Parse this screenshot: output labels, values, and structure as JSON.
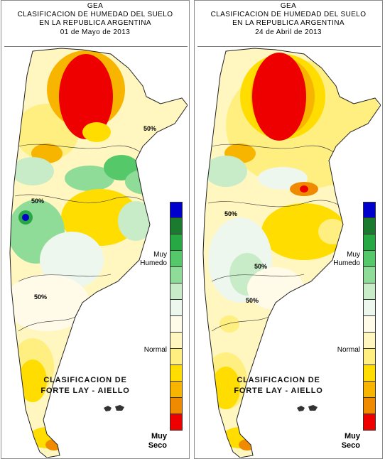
{
  "panels": [
    {
      "org": "GEA",
      "title1": "CLASIFICACION DE HUMEDAD DEL SUELO",
      "title2": "EN LA REPUBLICA ARGENTINA",
      "date": "01 de Mayo de 2013",
      "contour_label": "50%",
      "method1": "CLASIFICACION DE",
      "method2": "FORTE LAY - AIELLO"
    },
    {
      "org": "GEA",
      "title1": "CLASIFICACION DE HUMEDAD DEL SUELO",
      "title2": "EN LA REPUBLICA ARGENTINA",
      "date": "24 de Abril de 2013",
      "contour_label": "50%",
      "method1": "CLASIFICACION DE",
      "method2": "FORTE LAY - AIELLO"
    }
  ],
  "legend": {
    "label_wet_1": "Muy",
    "label_wet_2": "Humedo",
    "label_normal": "Normal",
    "label_dry_1": "Muy",
    "label_dry_2": "Seco",
    "colors": [
      "#0000cc",
      "#1a7a2e",
      "#28a745",
      "#55c86a",
      "#8fdc98",
      "#c8ecc8",
      "#eef7ee",
      "#fffbe8",
      "#fff6c0",
      "#ffee80",
      "#ffdd00",
      "#f7b500",
      "#f08a00",
      "#ee0000"
    ]
  }
}
